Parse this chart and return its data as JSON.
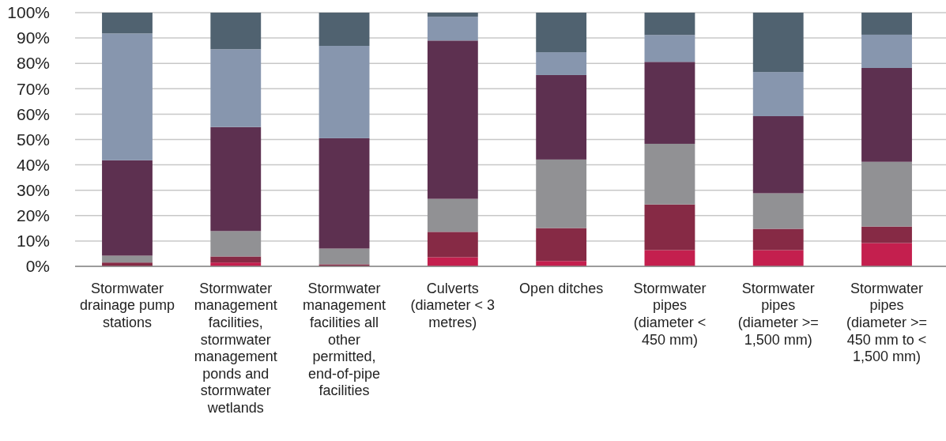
{
  "chart_data": {
    "type": "bar",
    "stacked": true,
    "categories": [
      "Stormwater drainage pump stations",
      "Stormwater management facilities, stormwater management ponds and stormwater wetlands",
      "Stormwater management facilities all other permitted, end-of-pipe facilities",
      "Culverts (diameter < 3 metres)",
      "Open ditches",
      "Stormwater pipes (diameter < 450 mm)",
      "Stormwater pipes (diameter >= 1,500 mm)",
      "Stormwater pipes (diameter >= 450 mm to < 1,500 mm)"
    ],
    "series": [
      {
        "color": "#c41f4e",
        "values": [
          0,
          1.5,
          0,
          3.6,
          2.1,
          6.4,
          6.4,
          9.2
        ]
      },
      {
        "color": "#862a45",
        "values": [
          1.5,
          2.4,
          0.8,
          10.0,
          13.0,
          18.0,
          8.4,
          6.5
        ]
      },
      {
        "color": "#919194",
        "values": [
          2.7,
          10.0,
          6.2,
          13.0,
          27.0,
          23.9,
          14.0,
          25.5
        ]
      },
      {
        "color": "#5d3050",
        "values": [
          37.6,
          41.0,
          43.5,
          62.4,
          33.3,
          32.3,
          30.4,
          37.0
        ]
      },
      {
        "color": "#8796ae",
        "values": [
          50.0,
          30.7,
          36.4,
          9.4,
          9.0,
          10.6,
          17.4,
          13.1
        ]
      },
      {
        "color": "#506270",
        "values": [
          8.2,
          14.4,
          13.1,
          1.6,
          15.6,
          8.8,
          23.4,
          8.7
        ]
      }
    ],
    "ylim": [
      0,
      100
    ],
    "yticks": [
      {
        "value": 0,
        "label": "0%"
      },
      {
        "value": 10,
        "label": "10%"
      },
      {
        "value": 20,
        "label": "20%"
      },
      {
        "value": 30,
        "label": "30%"
      },
      {
        "value": 40,
        "label": "40%"
      },
      {
        "value": 50,
        "label": "50%"
      },
      {
        "value": 60,
        "label": "60%"
      },
      {
        "value": 70,
        "label": "70%"
      },
      {
        "value": 80,
        "label": "80%"
      },
      {
        "value": 90,
        "label": "90%"
      },
      {
        "value": 100,
        "label": "100%"
      }
    ],
    "grid": "y"
  }
}
